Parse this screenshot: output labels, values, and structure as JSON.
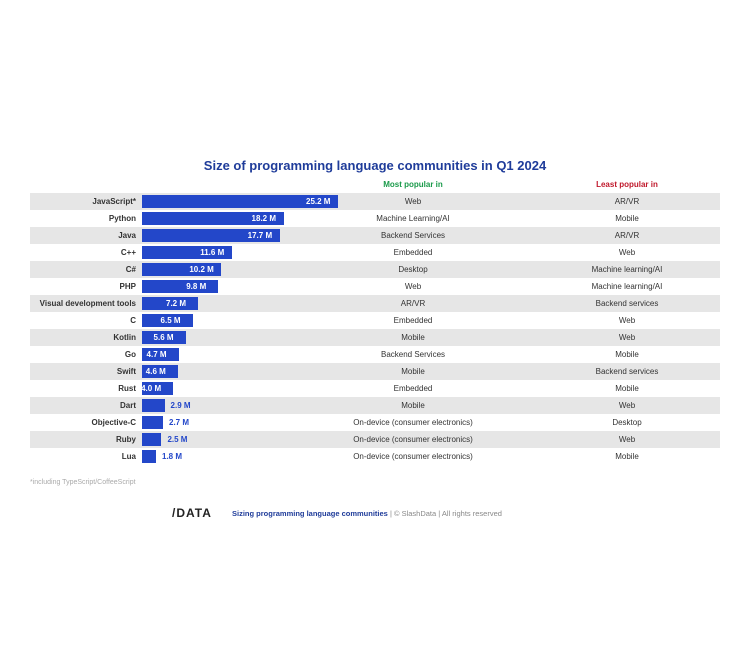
{
  "chart_data": {
    "type": "bar",
    "title": "Size of programming language communities in Q1 2024",
    "categories": [
      "JavaScript*",
      "Python",
      "Java",
      "C++",
      "C#",
      "PHP",
      "Visual development tools",
      "C",
      "Kotlin",
      "Go",
      "Swift",
      "Rust",
      "Dart",
      "Objective-C",
      "Ruby",
      "Lua"
    ],
    "values": [
      25.2,
      18.2,
      17.7,
      11.6,
      10.2,
      9.8,
      7.2,
      6.5,
      5.6,
      4.7,
      4.6,
      4.0,
      2.9,
      2.7,
      2.5,
      1.8
    ],
    "value_labels": [
      "25.2 M",
      "18.2 M",
      "17.7 M",
      "11.6 M",
      "10.2 M",
      "9.8 M",
      "7.2 M",
      "6.5 M",
      "5.6 M",
      "4.7 M",
      "4.6 M",
      "4.0 M",
      "2.9 M",
      "2.7 M",
      "2.5 M",
      "1.8 M"
    ],
    "unit": "M",
    "columns": {
      "most_popular": "Most popular in",
      "least_popular": "Least popular in"
    },
    "most_popular": [
      "Web",
      "Machine Learning/AI",
      "Backend Services",
      "Embedded",
      "Desktop",
      "Web",
      "AR/VR",
      "Embedded",
      "Mobile",
      "Backend Services",
      "Mobile",
      "Embedded",
      "Mobile",
      "On-device (consumer electronics)",
      "On-device (consumer electronics)",
      "On-device (consumer electronics)"
    ],
    "least_popular": [
      "AR/VR",
      "Mobile",
      "AR/VR",
      "Web",
      "Machine learning/AI",
      "Machine learning/AI",
      "Backend services",
      "Web",
      "Web",
      "Mobile",
      "Backend services",
      "Mobile",
      "Web",
      "Desktop",
      "Web",
      "Mobile"
    ],
    "bar_color": "#2347c9",
    "most_color": "#1a9a4a",
    "least_color": "#c0182b",
    "footnote": "*including TypeScript/CoffeeScript"
  },
  "footer": {
    "logo": "/DATA",
    "report": "Sizing programming language communities",
    "rest": " | © SlashData | All rights reserved"
  }
}
